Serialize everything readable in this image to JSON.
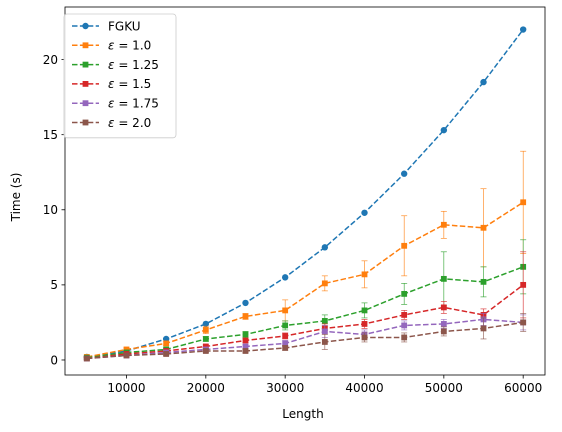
{
  "chart_data": {
    "type": "line",
    "title": "",
    "xlabel": "Length",
    "ylabel": "Time (s)",
    "xlim": [
      2250,
      62750
    ],
    "ylim": [
      -1.0,
      23.5
    ],
    "x_ticks": [
      10000,
      20000,
      30000,
      40000,
      50000,
      60000
    ],
    "x_tick_labels": [
      "10000",
      "20000",
      "30000",
      "40000",
      "50000",
      "60000"
    ],
    "y_ticks": [
      0,
      5,
      10,
      15,
      20
    ],
    "y_tick_labels": [
      "0",
      "5",
      "10",
      "15",
      "20"
    ],
    "grid": false,
    "legend_position": "upper-left",
    "x": [
      5000,
      10000,
      15000,
      20000,
      25000,
      30000,
      35000,
      40000,
      45000,
      50000,
      55000,
      60000
    ],
    "series": [
      {
        "name": "FGKU",
        "legend_parts": [
          {
            "text": "FGKU",
            "italic": false
          }
        ],
        "color": "#1f77b4",
        "marker": "circle",
        "values": [
          0.2,
          0.6,
          1.4,
          2.4,
          3.8,
          5.5,
          7.5,
          9.8,
          12.4,
          15.3,
          18.5,
          22.0
        ],
        "errors": [
          0,
          0,
          0,
          0,
          0,
          0,
          0,
          0,
          0,
          0,
          0,
          0
        ]
      },
      {
        "name": "ε = 1.0",
        "legend_parts": [
          {
            "text": "ε",
            "italic": true
          },
          {
            "text": " = 1.0",
            "italic": false
          }
        ],
        "color": "#ff7f0e",
        "marker": "square",
        "values": [
          0.2,
          0.7,
          1.1,
          2.0,
          2.9,
          3.3,
          5.1,
          5.7,
          7.6,
          9.0,
          8.8,
          10.5
        ],
        "errors": [
          0.05,
          0.1,
          0.15,
          0.25,
          0.2,
          0.7,
          0.5,
          0.9,
          2.0,
          0.9,
          2.6,
          3.4
        ]
      },
      {
        "name": "ε = 1.25",
        "legend_parts": [
          {
            "text": "ε",
            "italic": true
          },
          {
            "text": " = 1.25",
            "italic": false
          }
        ],
        "color": "#2ca02c",
        "marker": "square",
        "values": [
          0.15,
          0.5,
          0.7,
          1.4,
          1.7,
          2.3,
          2.6,
          3.3,
          4.4,
          5.4,
          5.2,
          6.2
        ],
        "errors": [
          0.05,
          0.1,
          0.1,
          0.15,
          0.2,
          0.3,
          0.4,
          0.5,
          0.7,
          1.8,
          1.0,
          1.8
        ]
      },
      {
        "name": "ε = 1.5",
        "legend_parts": [
          {
            "text": "ε",
            "italic": true
          },
          {
            "text": " = 1.5",
            "italic": false
          }
        ],
        "color": "#d62728",
        "marker": "square",
        "values": [
          0.1,
          0.4,
          0.6,
          0.9,
          1.3,
          1.6,
          2.1,
          2.4,
          3.0,
          3.5,
          3.0,
          5.0
        ],
        "errors": [
          0.05,
          0.1,
          0.1,
          0.1,
          0.15,
          0.2,
          0.3,
          0.3,
          0.3,
          0.4,
          0.4,
          2.2
        ]
      },
      {
        "name": "ε = 1.75",
        "legend_parts": [
          {
            "text": "ε",
            "italic": true
          },
          {
            "text": " = 1.75",
            "italic": false
          }
        ],
        "color": "#9467bd",
        "marker": "square",
        "values": [
          0.1,
          0.3,
          0.5,
          0.7,
          0.9,
          1.1,
          1.9,
          1.7,
          2.3,
          2.4,
          2.7,
          2.5
        ],
        "errors": [
          0.05,
          0.1,
          0.1,
          0.1,
          0.15,
          0.2,
          0.4,
          0.3,
          0.3,
          0.3,
          0.4,
          0.5
        ]
      },
      {
        "name": "ε = 2.0",
        "legend_parts": [
          {
            "text": "ε",
            "italic": true
          },
          {
            "text": " = 2.0",
            "italic": false
          }
        ],
        "color": "#8c564b",
        "marker": "square",
        "values": [
          0.1,
          0.3,
          0.4,
          0.6,
          0.6,
          0.8,
          1.2,
          1.5,
          1.5,
          1.9,
          2.1,
          2.5
        ],
        "errors": [
          0.05,
          0.1,
          0.1,
          0.1,
          0.1,
          0.15,
          0.5,
          0.3,
          0.3,
          0.3,
          0.7,
          0.6
        ]
      }
    ]
  }
}
